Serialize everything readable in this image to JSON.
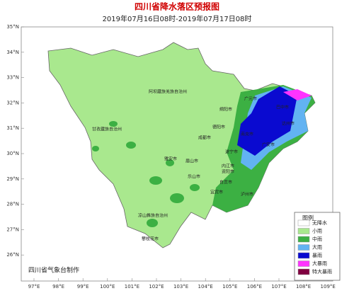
{
  "header": {
    "title": "四川省降水落区预报图",
    "subtitle": "2019年07月16日08时-2019年07月17日08时"
  },
  "lat_labels": [
    "35°N",
    "34°N",
    "33°N",
    "32°N",
    "31°N",
    "30°N",
    "29°N",
    "28°N",
    "27°N",
    "26°N"
  ],
  "lon_labels": [
    "97°E",
    "98°E",
    "99°E",
    "100°E",
    "101°E",
    "102°E",
    "103°E",
    "104°E",
    "105°E",
    "106°E",
    "107°E",
    "108°E",
    "109°E"
  ],
  "places": [
    "阿坝藏族羌族自治州",
    "甘孜藏族自治州",
    "广元市",
    "绵阳市",
    "巴中市",
    "达州市",
    "德阳市",
    "成都市",
    "南充市",
    "雅安市",
    "眉山市",
    "遂宁市",
    "广安市",
    "资阳市",
    "乐山市",
    "内江市",
    "自贡市",
    "宜宾市",
    "泸州市",
    "凉山彝族自治州",
    "攀枝花市"
  ],
  "legend": {
    "title": "图例",
    "items": [
      {
        "label": "无降水",
        "color": "#ffffff"
      },
      {
        "label": "小雨",
        "color": "#a9e88e"
      },
      {
        "label": "中雨",
        "color": "#3cb043"
      },
      {
        "label": "大雨",
        "color": "#62b3f2"
      },
      {
        "label": "暴雨",
        "color": "#0a0ad0"
      },
      {
        "label": "大暴雨",
        "color": "#ff33ff"
      },
      {
        "label": "特大暴雨",
        "color": "#800040"
      }
    ]
  },
  "credit": "四川省气象台制作"
}
